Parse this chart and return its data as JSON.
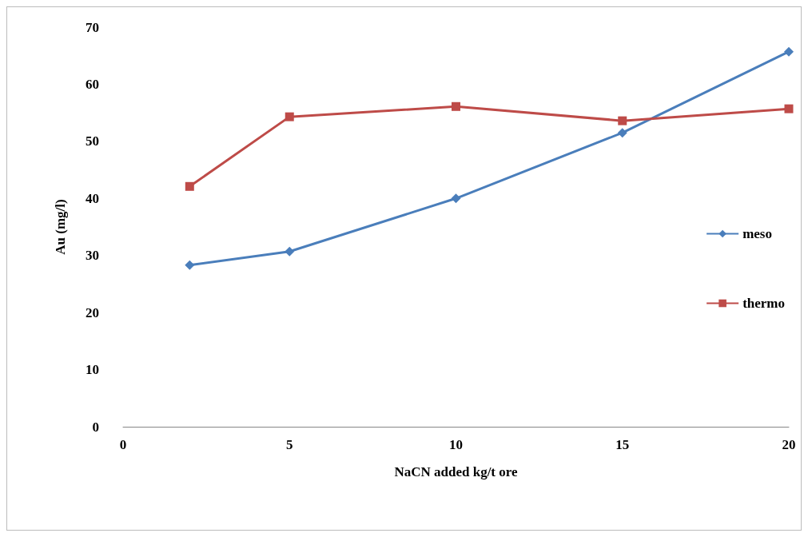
{
  "chart_data": {
    "type": "line",
    "xlabel": "NaCN added kg/t ore",
    "ylabel": "Au (mg/l)",
    "x": [
      2,
      5,
      10,
      15,
      20
    ],
    "series": [
      {
        "name": "meso",
        "color": "#4a7ebb",
        "marker": "diamond",
        "values": [
          28.3,
          30.7,
          40.0,
          51.5,
          65.7
        ]
      },
      {
        "name": "thermo",
        "color": "#be4b48",
        "marker": "square",
        "values": [
          42.1,
          54.3,
          56.1,
          53.6,
          55.7
        ]
      }
    ],
    "xlim": [
      0,
      20
    ],
    "xticks": [
      0,
      5,
      10,
      15,
      20
    ],
    "ylim": [
      0,
      70
    ],
    "yticks": [
      0,
      10,
      20,
      30,
      40,
      50,
      60,
      70
    ],
    "grid": false,
    "legend": "right",
    "line_style": "solid"
  }
}
